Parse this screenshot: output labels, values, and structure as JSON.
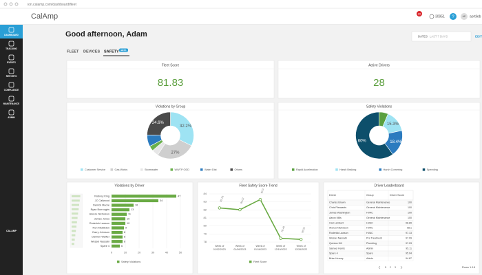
{
  "browser": {
    "url": "ion.calamp.com/dashboard/fleet"
  },
  "header": {
    "logo": "CalAmp",
    "notifications": "20",
    "count": "30951",
    "help": "?",
    "avatar": "AE",
    "user": "aortlieb"
  },
  "sidebar": {
    "items": [
      "DASHBOARD",
      "TRACKING",
      "EVENTS",
      "REPORTS",
      "COMPLIANCE",
      "MAINTENANCE",
      "ADMIN"
    ],
    "footer": "CALAMP"
  },
  "greeting": "Good afternoon, Adam",
  "tabs": [
    "FLEET",
    "DEVICES",
    "SAFETY"
  ],
  "tab_badge": "BETA",
  "dates": {
    "label": "DATES",
    "value": "LAST 7 DAYS"
  },
  "edit": "EDIT",
  "kpis": [
    {
      "title": "Fleet Score",
      "value": 81.83
    },
    {
      "title": "Active Drivers",
      "value": 28
    }
  ],
  "chart_data": [
    {
      "type": "pie",
      "title": "Violations by Group",
      "categories": [
        "Customer Service",
        "Gas Works",
        "Stormwater",
        "WWTP ODD",
        "Water Dist",
        "Others"
      ],
      "values": [
        32.2,
        27,
        4.6,
        3.5,
        8.1,
        24.6
      ],
      "value_labels": [
        "32.2%",
        "27%",
        null,
        null,
        null,
        "24.6%"
      ],
      "colors": [
        "#9ee3f3",
        "#cfcfcf",
        "#e6e6e6",
        "#6ab04c",
        "#2b7bbf",
        "#4a4a4a"
      ]
    },
    {
      "type": "pie",
      "title": "Safety Violations",
      "categories": [
        "Rapid Acceleration",
        "Harsh Braking",
        "Harsh Cornering",
        "Speeding"
      ],
      "values": [
        6.3,
        15.3,
        18.4,
        60
      ],
      "value_labels": [
        null,
        "15.3%",
        "18.4%",
        "60%"
      ],
      "colors": [
        "#5aa040",
        "#9ee3f3",
        "#2b7bbf",
        "#0d4f6b"
      ]
    },
    {
      "type": "bar",
      "orientation": "horizontal",
      "title": "Violations by Driver",
      "categories": [
        "Rodney King",
        "JC Callwood",
        "Derrick Moore",
        "Ryan Burroughs",
        "Alonzo Nicholson",
        "James Jones",
        "Roderick Lawson",
        "Ron Middleton",
        "Darry Johnson",
        "Damien Walker",
        "Wessel Nassabi",
        "Spare 4"
      ],
      "series": [
        {
          "name": "Safety Violations",
          "color": "#6aaa44",
          "values": [
            47,
            34,
            16,
            13,
            11,
            10,
            10,
            9,
            8,
            8,
            8,
            6
          ]
        }
      ],
      "xlim": [
        0,
        50
      ],
      "xticks": [
        0,
        10,
        20,
        30,
        40,
        50
      ]
    },
    {
      "type": "line",
      "title": "Fleet Safety Score Trend",
      "categories": [
        "Week of 01/02/2023",
        "Week of 01/09/2023",
        "Week of 01/16/2023",
        "Week of 12/19/2022",
        "Week of 12/26/2022"
      ],
      "series": [
        {
          "name": "Fleet Score",
          "color": "#6aaa44",
          "values": [
            82.25,
            82.02,
            83.3,
            78.46,
            78.33
          ]
        }
      ],
      "ylim": [
        78,
        84
      ],
      "yticks": [
        78,
        79,
        80,
        81,
        82,
        83,
        84
      ]
    }
  ],
  "leaderboard": {
    "title": "Driver Leaderboard",
    "columns": [
      "Driver",
      "Group",
      "Driver Score"
    ],
    "rows": [
      [
        "Charles Brown",
        "General Maintenance",
        100
      ],
      [
        "Chris Pleasants",
        "General Maintenance",
        100
      ],
      [
        "James Washington",
        "HVAC",
        100
      ],
      [
        "Aaron Mills",
        "General Maintenance",
        100
      ],
      [
        "Carl Lambert",
        "HVAC",
        98.89
      ],
      [
        "Alonzo Nicholson",
        "HVAC",
        98.1
      ],
      [
        "Roderick Lawson",
        "HVAC",
        97.13
      ],
      [
        "Wessel Nassabi",
        "Pre Treatment",
        97.09
      ],
      [
        "Quinton Hill",
        "Plumbing",
        97.03
      ],
      [
        "Samuel Harris",
        "Admin",
        95.11
      ],
      [
        "Spare 4",
        "Spare",
        95.04
      ],
      [
        "Brian Kersey",
        "Admin",
        94.87
      ]
    ],
    "pagination": [
      "1",
      "2",
      "3"
    ],
    "rows_label": "Rows 1-18"
  }
}
